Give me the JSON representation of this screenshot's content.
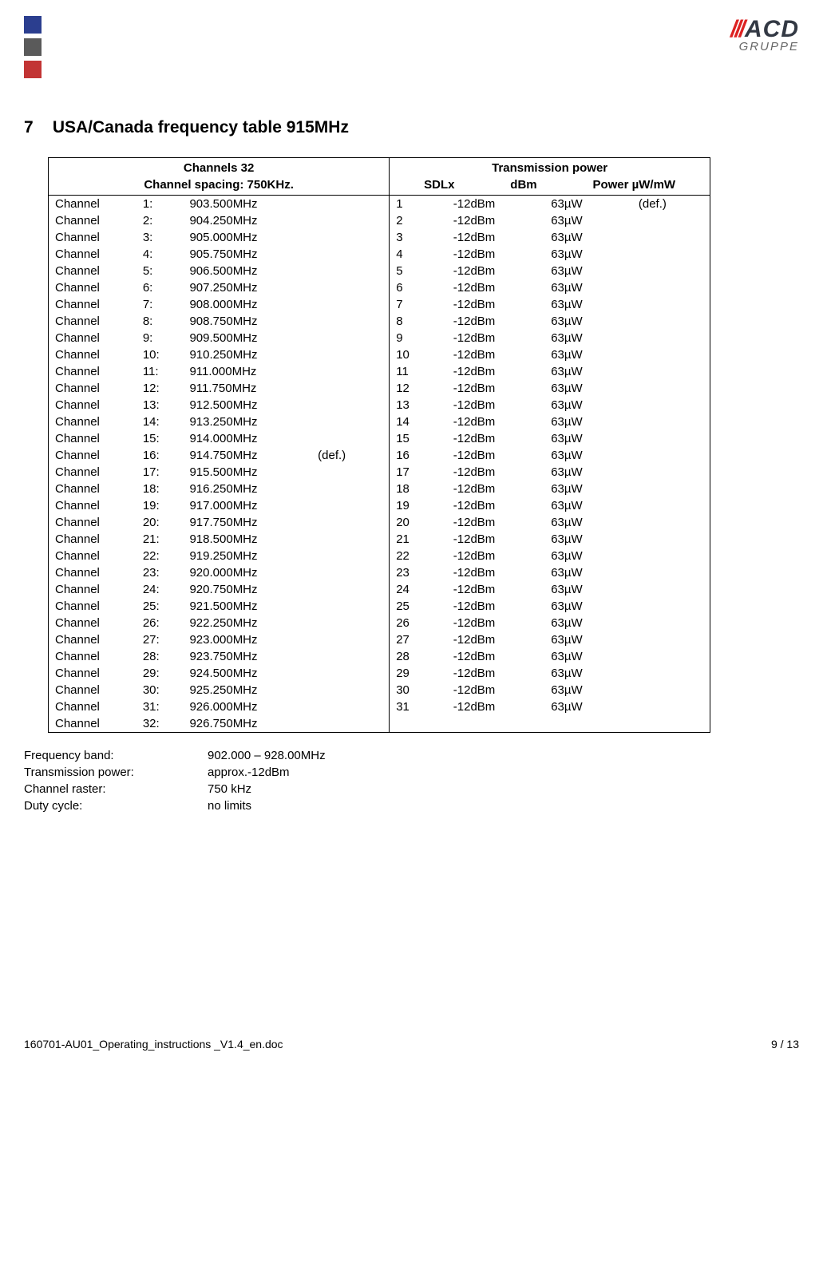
{
  "logo": {
    "main": "ACD",
    "sub": "GRUPPE"
  },
  "section": {
    "num": "7",
    "title": "USA/Canada frequency table 915MHz"
  },
  "table": {
    "header_left_line1": "Channels  32",
    "header_left_line2": "Channel spacing:  750KHz.",
    "header_right_line1": "Transmission power",
    "header_right_sdlx": "SDLx",
    "header_right_dbm": "dBm",
    "header_right_power": "Power µW/mW",
    "rows": [
      {
        "n": "1",
        "f": "903.500MHz",
        "d": "",
        "s": "1",
        "b": "-12dBm",
        "p": "63µW",
        "pd": "(def.)"
      },
      {
        "n": "2",
        "f": "904.250MHz",
        "d": "",
        "s": "2",
        "b": "-12dBm",
        "p": "63µW",
        "pd": ""
      },
      {
        "n": "3",
        "f": "905.000MHz",
        "d": "",
        "s": "3",
        "b": "-12dBm",
        "p": "63µW",
        "pd": ""
      },
      {
        "n": "4",
        "f": "905.750MHz",
        "d": "",
        "s": "4",
        "b": "-12dBm",
        "p": "63µW",
        "pd": ""
      },
      {
        "n": "5",
        "f": "906.500MHz",
        "d": "",
        "s": "5",
        "b": "-12dBm",
        "p": "63µW",
        "pd": ""
      },
      {
        "n": "6",
        "f": "907.250MHz",
        "d": "",
        "s": "6",
        "b": "-12dBm",
        "p": "63µW",
        "pd": ""
      },
      {
        "n": "7",
        "f": "908.000MHz",
        "d": "",
        "s": "7",
        "b": "-12dBm",
        "p": "63µW",
        "pd": ""
      },
      {
        "n": "8",
        "f": "908.750MHz",
        "d": "",
        "s": "8",
        "b": "-12dBm",
        "p": "63µW",
        "pd": ""
      },
      {
        "n": "9",
        "f": "909.500MHz",
        "d": "",
        "s": "9",
        "b": "-12dBm",
        "p": "63µW",
        "pd": ""
      },
      {
        "n": "10",
        "f": "910.250MHz",
        "d": "",
        "s": "10",
        "b": "-12dBm",
        "p": "63µW",
        "pd": ""
      },
      {
        "n": "11",
        "f": "911.000MHz",
        "d": "",
        "s": "11",
        "b": "-12dBm",
        "p": "63µW",
        "pd": ""
      },
      {
        "n": "12",
        "f": "911.750MHz",
        "d": "",
        "s": "12",
        "b": "-12dBm",
        "p": "63µW",
        "pd": ""
      },
      {
        "n": "13",
        "f": "912.500MHz",
        "d": "",
        "s": "13",
        "b": "-12dBm",
        "p": "63µW",
        "pd": ""
      },
      {
        "n": "14",
        "f": "913.250MHz",
        "d": "",
        "s": "14",
        "b": "-12dBm",
        "p": "63µW",
        "pd": ""
      },
      {
        "n": "15",
        "f": "914.000MHz",
        "d": "",
        "s": "15",
        "b": "-12dBm",
        "p": "63µW",
        "pd": ""
      },
      {
        "n": "16",
        "f": "914.750MHz",
        "d": "(def.)",
        "s": "16",
        "b": "-12dBm",
        "p": "63µW",
        "pd": ""
      },
      {
        "n": "17",
        "f": "915.500MHz",
        "d": "",
        "s": "17",
        "b": "-12dBm",
        "p": "63µW",
        "pd": ""
      },
      {
        "n": "18",
        "f": "916.250MHz",
        "d": "",
        "s": "18",
        "b": "-12dBm",
        "p": "63µW",
        "pd": ""
      },
      {
        "n": "19",
        "f": "917.000MHz",
        "d": "",
        "s": "19",
        "b": "-12dBm",
        "p": "63µW",
        "pd": ""
      },
      {
        "n": "20",
        "f": "917.750MHz",
        "d": "",
        "s": "20",
        "b": "-12dBm",
        "p": "63µW",
        "pd": ""
      },
      {
        "n": "21",
        "f": "918.500MHz",
        "d": "",
        "s": "21",
        "b": "-12dBm",
        "p": "63µW",
        "pd": ""
      },
      {
        "n": "22",
        "f": "919.250MHz",
        "d": "",
        "s": "22",
        "b": "-12dBm",
        "p": "63µW",
        "pd": ""
      },
      {
        "n": "23",
        "f": "920.000MHz",
        "d": "",
        "s": "23",
        "b": "-12dBm",
        "p": "63µW",
        "pd": ""
      },
      {
        "n": "24",
        "f": "920.750MHz",
        "d": "",
        "s": "24",
        "b": "-12dBm",
        "p": "63µW",
        "pd": ""
      },
      {
        "n": "25",
        "f": "921.500MHz",
        "d": "",
        "s": "25",
        "b": "-12dBm",
        "p": "63µW",
        "pd": ""
      },
      {
        "n": "26",
        "f": "922.250MHz",
        "d": "",
        "s": "26",
        "b": "-12dBm",
        "p": "63µW",
        "pd": ""
      },
      {
        "n": "27",
        "f": "923.000MHz",
        "d": "",
        "s": "27",
        "b": "-12dBm",
        "p": "63µW",
        "pd": ""
      },
      {
        "n": "28",
        "f": "923.750MHz",
        "d": "",
        "s": "28",
        "b": "-12dBm",
        "p": "63µW",
        "pd": ""
      },
      {
        "n": "29",
        "f": "924.500MHz",
        "d": "",
        "s": "29",
        "b": "-12dBm",
        "p": "63µW",
        "pd": ""
      },
      {
        "n": "30",
        "f": "925.250MHz",
        "d": "",
        "s": "30",
        "b": "-12dBm",
        "p": "63µW",
        "pd": ""
      },
      {
        "n": "31",
        "f": "926.000MHz",
        "d": "",
        "s": "31",
        "b": "-12dBm",
        "p": "63µW",
        "pd": ""
      },
      {
        "n": "32",
        "f": "926.750MHz",
        "d": "",
        "s": "",
        "b": "",
        "p": "",
        "pd": ""
      }
    ],
    "channel_label": "Channel"
  },
  "info": [
    {
      "label": "Frequency band:",
      "value": "902.000 – 928.00MHz"
    },
    {
      "label": "Transmission power:",
      "value": "approx.-12dBm"
    },
    {
      "label": "Channel raster:",
      "value": "750 kHz"
    },
    {
      "label": "Duty cycle:",
      "value": "no limits"
    }
  ],
  "footer": {
    "left": "160701-AU01_Operating_instructions _V1.4_en.doc",
    "right": "9 / 13"
  },
  "colors": {
    "flag_blue": "#2b3e8f",
    "flag_gray": "#5a5a5a",
    "flag_red": "#c23434"
  }
}
